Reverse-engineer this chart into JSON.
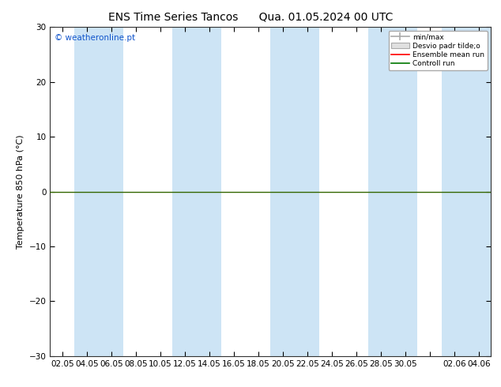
{
  "title_left": "ENS Time Series Tancos",
  "title_right": "Qua. 01.05.2024 00 UTC",
  "ylabel": "Temperature 850 hPa (°C)",
  "copyright": "© weatheronline.pt",
  "ylim": [
    -30,
    30
  ],
  "yticks": [
    -30,
    -20,
    -10,
    0,
    10,
    20,
    30
  ],
  "xtick_labels": [
    "02.05",
    "04.05",
    "06.05",
    "08.05",
    "10.05",
    "12.05",
    "14.05",
    "16.05",
    "18.05",
    "20.05",
    "22.05",
    "24.05",
    "26.05",
    "28.05",
    "30.05",
    "",
    "02.06",
    "04.06"
  ],
  "background_color": "#ffffff",
  "plot_bg_color": "#ffffff",
  "band_color": "#cde4f5",
  "band_indices": [
    1,
    2,
    5,
    6,
    9,
    10,
    13,
    14,
    16,
    17
  ],
  "hline_y": 0,
  "hline_color": "#336600",
  "title_fontsize": 10,
  "tick_fontsize": 7.5,
  "ylabel_fontsize": 8,
  "legend_label_minmax": "min/max",
  "legend_label_desvio": "Desvio padr tilde;o",
  "legend_label_ensemble": "Ensemble mean run",
  "legend_label_control": "Controll run",
  "legend_color_minmax": "#aaaaaa",
  "legend_color_desvio": "#cccccc",
  "legend_color_ensemble": "#ff0000",
  "legend_color_control": "#007700"
}
